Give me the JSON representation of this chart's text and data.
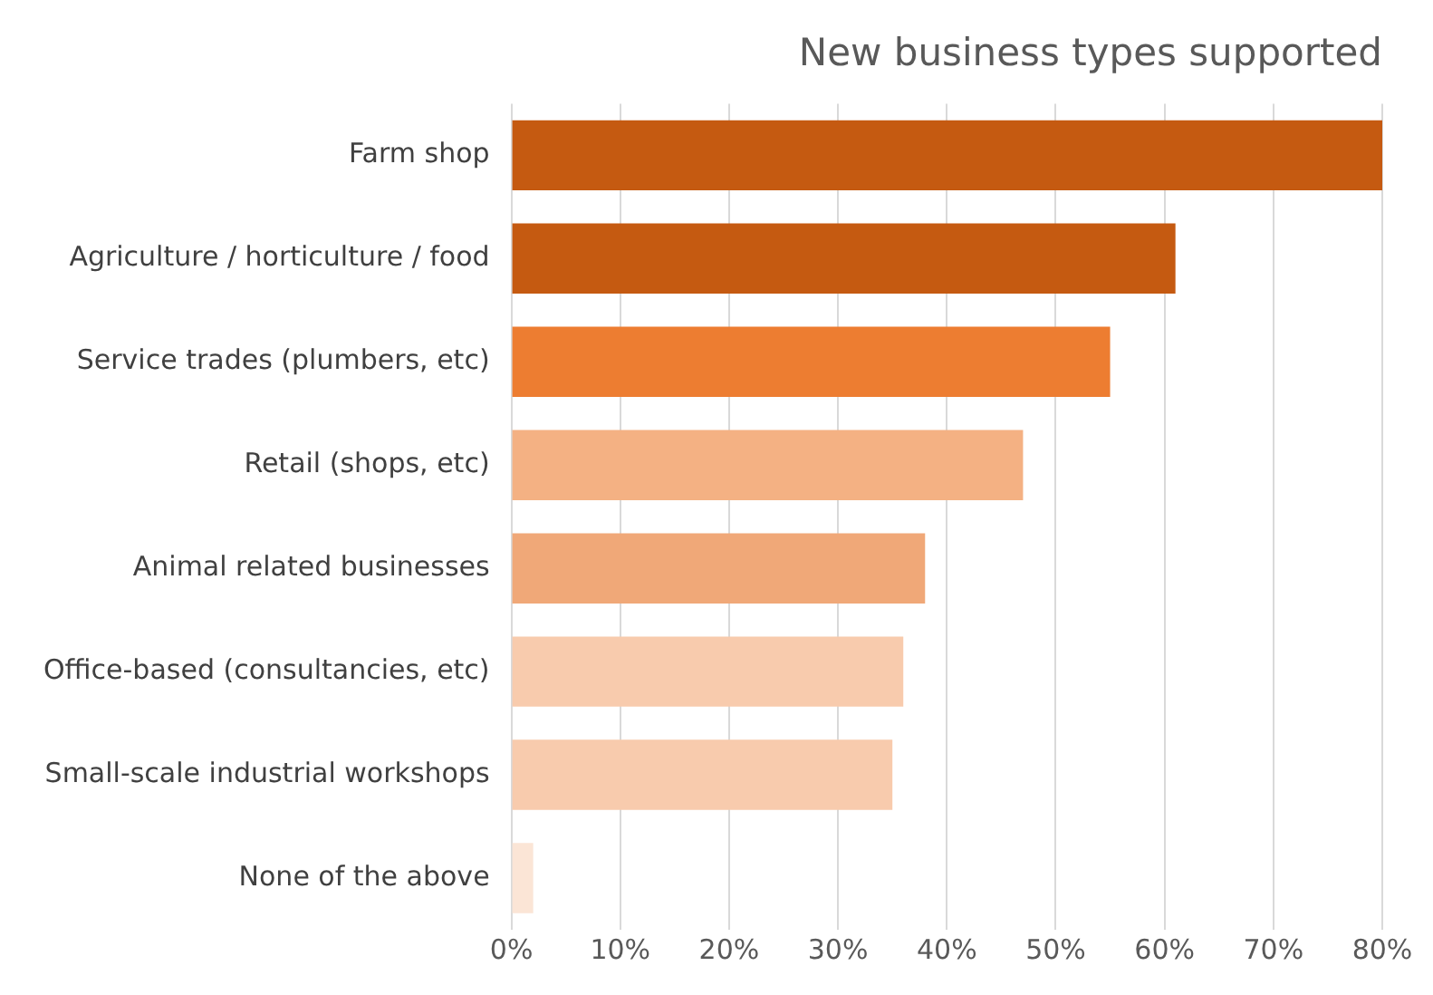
{
  "chart_data": {
    "type": "bar",
    "orientation": "horizontal",
    "title": "New business types supported",
    "categories": [
      "Farm shop",
      "Agriculture / horticulture / food",
      "Service trades (plumbers, etc)",
      "Retail (shops, etc)",
      "Animal related businesses",
      "Office-based (consultancies, etc)",
      "Small-scale industrial workshops",
      "None of the above"
    ],
    "values": [
      80,
      61,
      55,
      47,
      38,
      36,
      35,
      2
    ],
    "colors": [
      "#c55a11",
      "#c55a11",
      "#ed7d31",
      "#f4b183",
      "#f0a878",
      "#f8cbad",
      "#f8cbad",
      "#fbe5d6"
    ],
    "xlim": [
      0,
      80
    ],
    "xticks": [
      {
        "value": 0,
        "label": "0%"
      },
      {
        "value": 10,
        "label": "10%"
      },
      {
        "value": 20,
        "label": "20%"
      },
      {
        "value": 30,
        "label": "30%"
      },
      {
        "value": 40,
        "label": "40%"
      },
      {
        "value": 50,
        "label": "50%"
      },
      {
        "value": 60,
        "label": "60%"
      },
      {
        "value": 70,
        "label": "70%"
      },
      {
        "value": 80,
        "label": "80%"
      }
    ],
    "grid": "x",
    "legend": false
  }
}
